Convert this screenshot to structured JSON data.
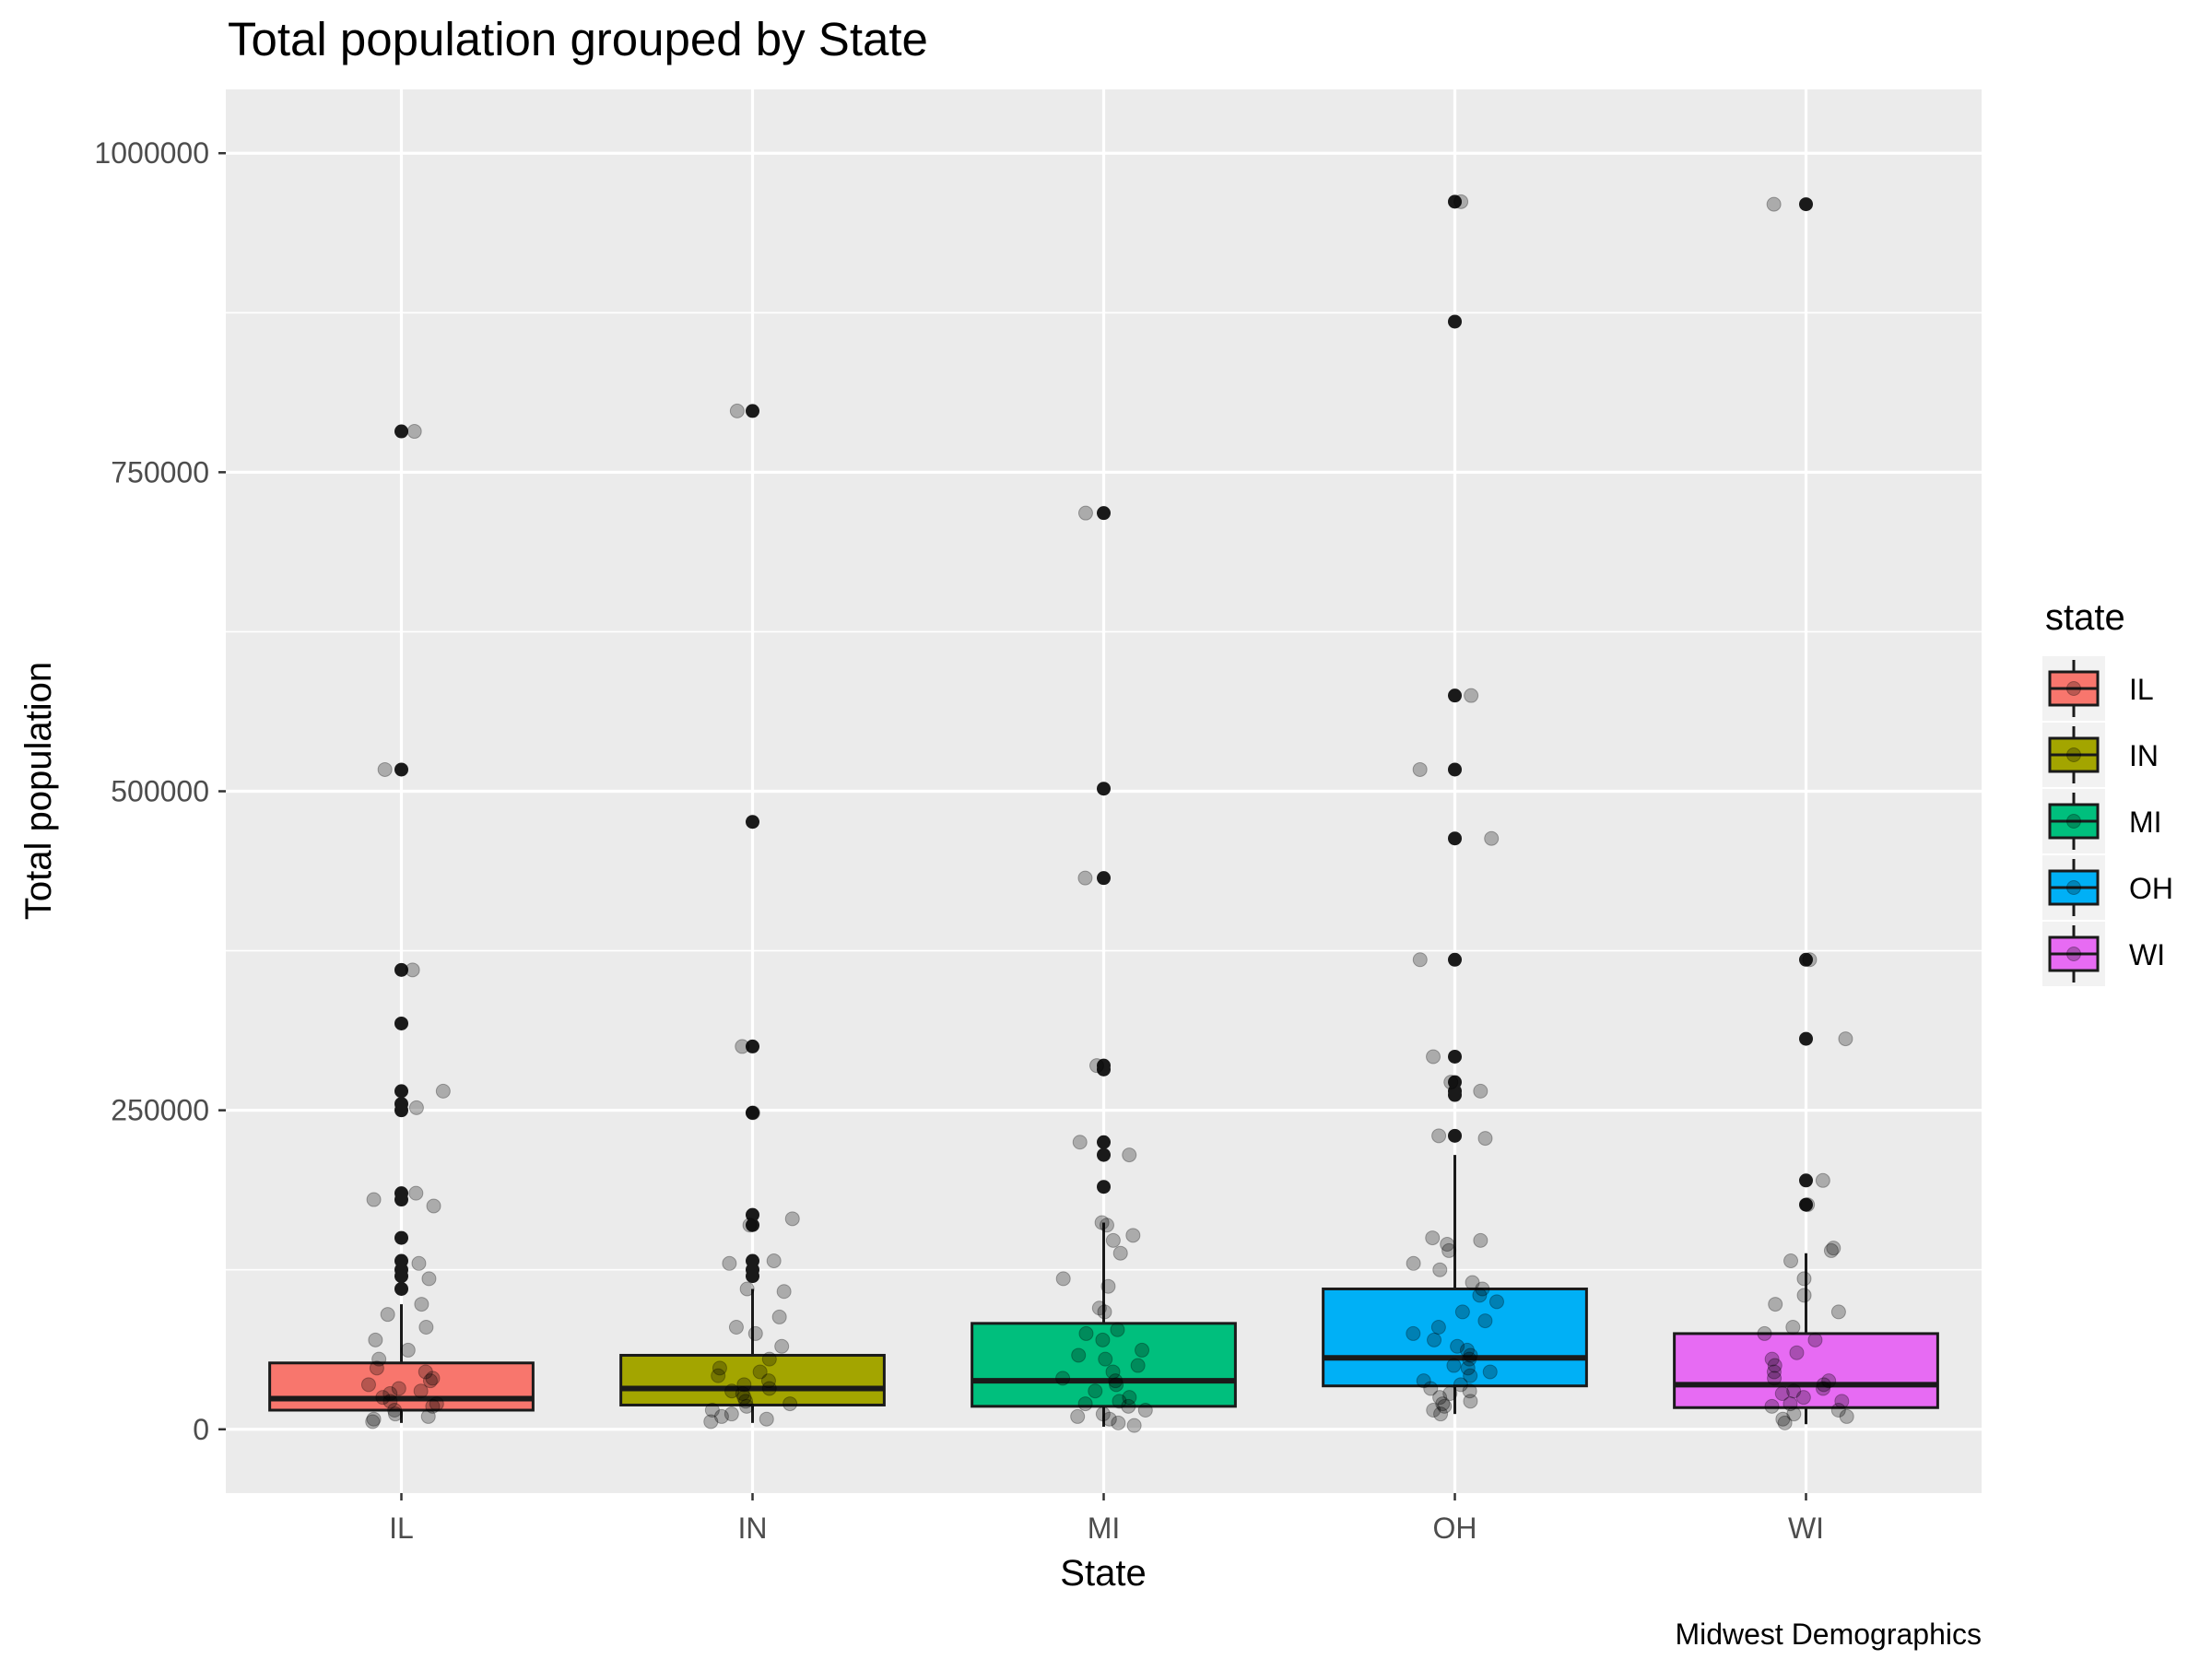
{
  "chart_data": {
    "type": "boxplot",
    "title": "Total population grouped by State",
    "xlabel": "State",
    "ylabel": "Total population",
    "caption": "Midwest Demographics",
    "categories": [
      "IL",
      "IN",
      "MI",
      "OH",
      "WI"
    ],
    "yticks": [
      0,
      250000,
      500000,
      750000,
      1000000
    ],
    "yticks_labels": [
      "0",
      "250000",
      "500000",
      "750000",
      "1000000"
    ],
    "ylim": [
      -50000,
      1050000
    ],
    "grid": true,
    "legend": {
      "title": "state",
      "position": "right",
      "entries": [
        "IL",
        "IN",
        "MI",
        "OH",
        "WI"
      ]
    },
    "colors": {
      "IL": "#F8766D",
      "IN": "#A3A500",
      "MI": "#00BF7D",
      "OH": "#00B0F6",
      "WI": "#E76BF3"
    },
    "boxes": [
      {
        "state": "IL",
        "q1": 15000,
        "median": 24000,
        "q3": 52000,
        "whisker_low": 5000,
        "whisker_high": 98000,
        "outliers": [
          782000,
          517000,
          360000,
          318000,
          265000,
          255000,
          250000,
          185000,
          180000,
          150000,
          132000,
          125000,
          120000,
          110000
        ],
        "jitter": [
          782000,
          517000,
          360000,
          265000,
          252000,
          185000,
          180000,
          175000,
          130000,
          118000,
          98000,
          90000,
          80000,
          70000,
          62000,
          55000,
          48000,
          45000,
          40000,
          38000,
          35000,
          32000,
          30000,
          28000,
          25000,
          22000,
          20000,
          18000,
          15000,
          12000,
          10000,
          8000,
          6000
        ]
      },
      {
        "state": "IN",
        "q1": 19000,
        "median": 32000,
        "q3": 58000,
        "whisker_low": 5000,
        "whisker_high": 110000,
        "outliers": [
          798000,
          476000,
          300000,
          248000,
          168000,
          160000,
          132000,
          125000,
          120000
        ],
        "jitter": [
          798000,
          300000,
          248000,
          165000,
          160000,
          132000,
          130000,
          110000,
          108000,
          88000,
          80000,
          75000,
          65000,
          55000,
          48000,
          45000,
          42000,
          38000,
          35000,
          32000,
          30000,
          28000,
          25000,
          22000,
          20000,
          18000,
          15000,
          12000,
          10000,
          8000,
          6000
        ]
      },
      {
        "state": "MI",
        "q1": 18000,
        "median": 38000,
        "q3": 83000,
        "whisker_low": 2000,
        "whisker_high": 162000,
        "outliers": [
          718000,
          502000,
          432000,
          285000,
          282000,
          225000,
          215000,
          190000
        ],
        "jitter": [
          718000,
          432000,
          285000,
          225000,
          215000,
          162000,
          160000,
          152000,
          148000,
          138000,
          118000,
          112000,
          95000,
          92000,
          78000,
          75000,
          70000,
          62000,
          58000,
          55000,
          50000,
          45000,
          40000,
          38000,
          35000,
          30000,
          25000,
          22000,
          20000,
          18000,
          15000,
          12000,
          10000,
          8000,
          5000,
          3000
        ]
      },
      {
        "state": "OH",
        "q1": 34000,
        "median": 56000,
        "q3": 110000,
        "whisker_low": 12000,
        "whisker_high": 215000,
        "outliers": [
          962000,
          868000,
          575000,
          517000,
          463000,
          368000,
          292000,
          272000,
          265000,
          262000,
          230000
        ],
        "jitter": [
          962000,
          575000,
          517000,
          463000,
          368000,
          292000,
          272000,
          265000,
          230000,
          228000,
          150000,
          148000,
          145000,
          140000,
          130000,
          125000,
          115000,
          110000,
          105000,
          100000,
          92000,
          85000,
          80000,
          75000,
          70000,
          65000,
          62000,
          58000,
          55000,
          50000,
          48000,
          45000,
          42000,
          38000,
          35000,
          32000,
          30000,
          28000,
          25000,
          22000,
          20000,
          18000,
          15000,
          12000
        ]
      },
      {
        "state": "WI",
        "q1": 17000,
        "median": 35000,
        "q3": 75000,
        "whisker_low": 4000,
        "whisker_high": 138000,
        "outliers": [
          960000,
          368000,
          306000,
          195000,
          176000
        ],
        "jitter": [
          960000,
          368000,
          306000,
          195000,
          176000,
          142000,
          140000,
          132000,
          118000,
          105000,
          98000,
          92000,
          80000,
          75000,
          70000,
          60000,
          55000,
          50000,
          45000,
          40000,
          38000,
          35000,
          32000,
          30000,
          28000,
          25000,
          22000,
          20000,
          18000,
          15000,
          12000,
          10000,
          8000,
          5000
        ]
      }
    ]
  }
}
